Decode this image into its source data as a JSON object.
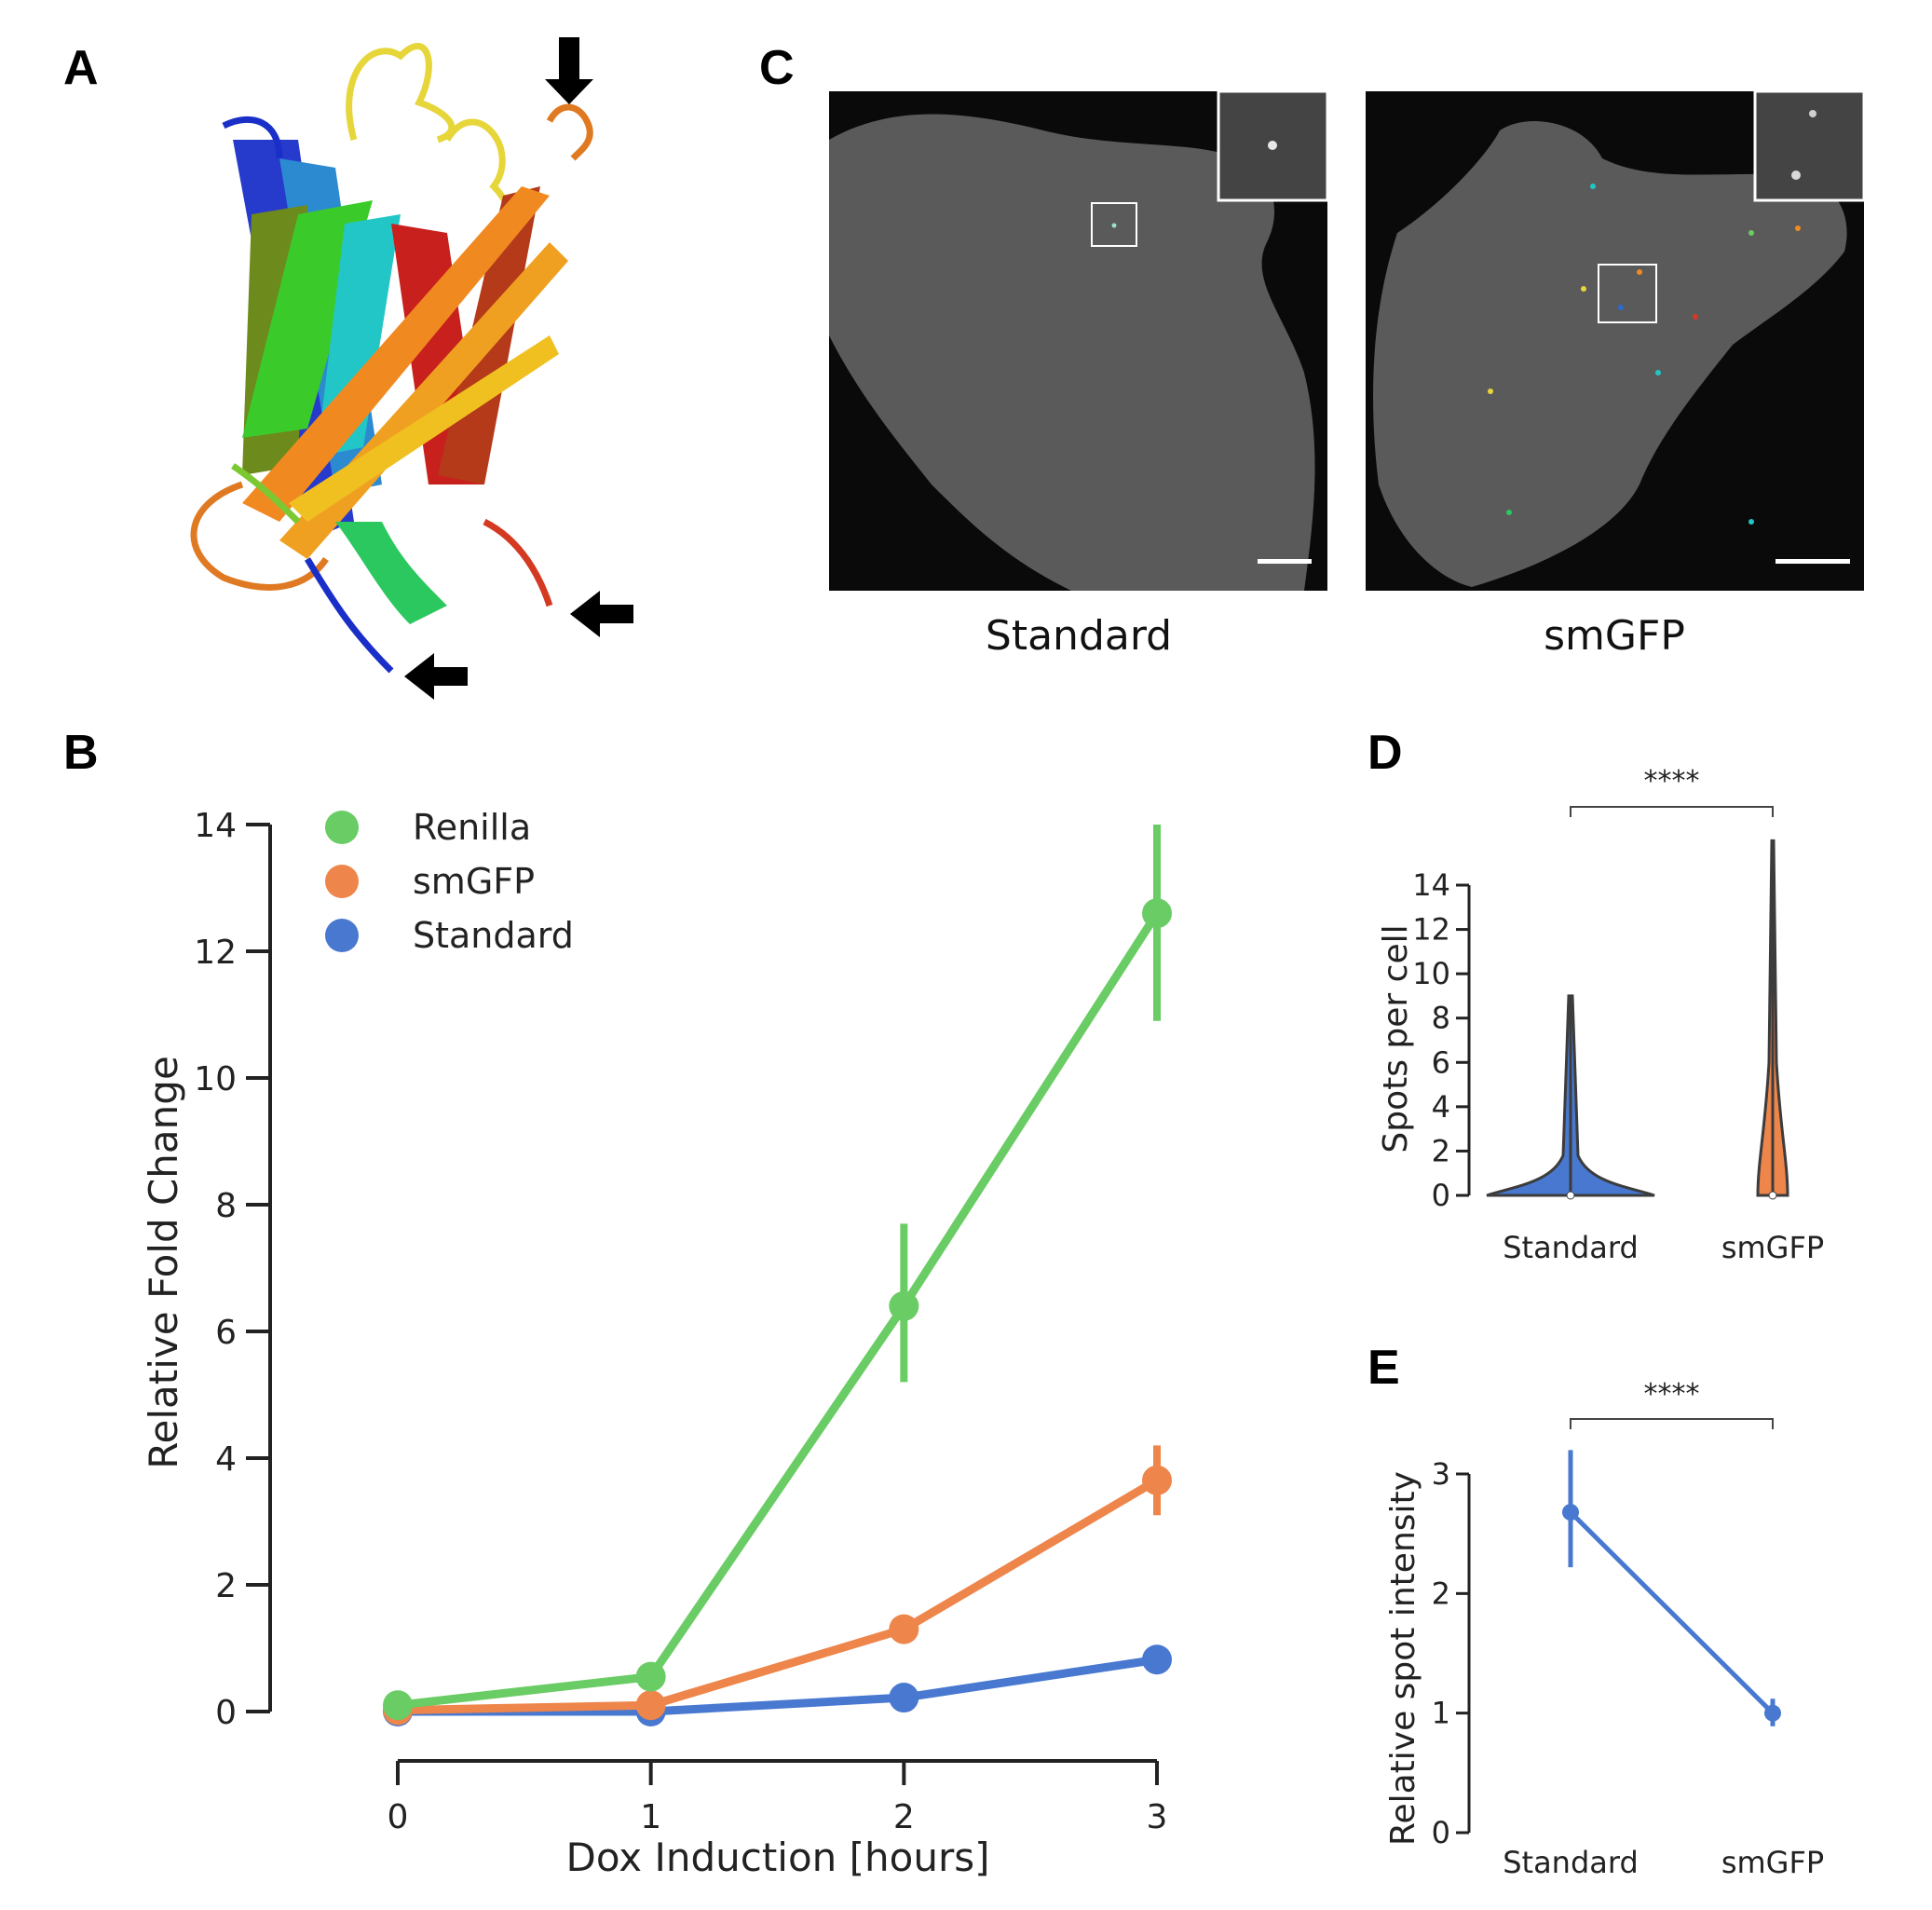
{
  "panels": {
    "A": {
      "letter": "A"
    },
    "B": {
      "letter": "B"
    },
    "C": {
      "letter": "C",
      "captions": [
        "Standard",
        "smGFP"
      ]
    },
    "D": {
      "letter": "D"
    },
    "E": {
      "letter": "E"
    }
  },
  "colors": {
    "Renilla": "#6acc64",
    "smGFP": "#ee854a",
    "Standard": "#4878d0"
  },
  "chart_data": [
    {
      "id": "B",
      "type": "line",
      "xlabel": "Dox Induction [hours]",
      "ylabel": "Relative Fold Change",
      "x": [
        0,
        1,
        2,
        3
      ],
      "xticks": [
        "0",
        "1",
        "2",
        "3"
      ],
      "yticks": [
        "0",
        "2",
        "4",
        "6",
        "8",
        "10",
        "12",
        "14"
      ],
      "ylim": [
        0,
        14
      ],
      "legend": "top-left",
      "series": [
        {
          "name": "Renilla",
          "values": [
            0.1,
            0.55,
            6.4,
            12.6
          ],
          "err_low": [
            0.05,
            0.45,
            5.2,
            10.9
          ],
          "err_high": [
            0.15,
            0.65,
            7.7,
            14.0
          ]
        },
        {
          "name": "smGFP",
          "values": [
            0.02,
            0.1,
            1.3,
            3.65
          ],
          "err_low": [
            0.0,
            0.05,
            1.2,
            3.1
          ],
          "err_high": [
            0.05,
            0.15,
            1.4,
            4.2
          ]
        },
        {
          "name": "Standard",
          "values": [
            0.0,
            0.0,
            0.22,
            0.82
          ],
          "err_low": [
            0.0,
            0.0,
            0.18,
            0.75
          ],
          "err_high": [
            0.0,
            0.0,
            0.26,
            0.9
          ]
        }
      ]
    },
    {
      "id": "D",
      "type": "violin",
      "categories": [
        "Standard",
        "smGFP"
      ],
      "ylabel": "Spots per cell",
      "yticks": [
        "0",
        "2",
        "4",
        "6",
        "8",
        "10",
        "12",
        "14"
      ],
      "ylim": [
        0,
        14
      ],
      "max": [
        9,
        16
      ],
      "median": [
        0,
        0
      ],
      "significance": "****"
    },
    {
      "id": "E",
      "type": "line",
      "categories": [
        "Standard",
        "smGFP"
      ],
      "ylabel": "Relative spot intensity",
      "yticks": [
        "0",
        "1",
        "2",
        "3"
      ],
      "ylim": [
        0,
        3
      ],
      "values": [
        2.68,
        1.0
      ],
      "err_low": [
        2.22,
        0.89
      ],
      "err_high": [
        3.2,
        1.12
      ],
      "significance": "****"
    }
  ]
}
